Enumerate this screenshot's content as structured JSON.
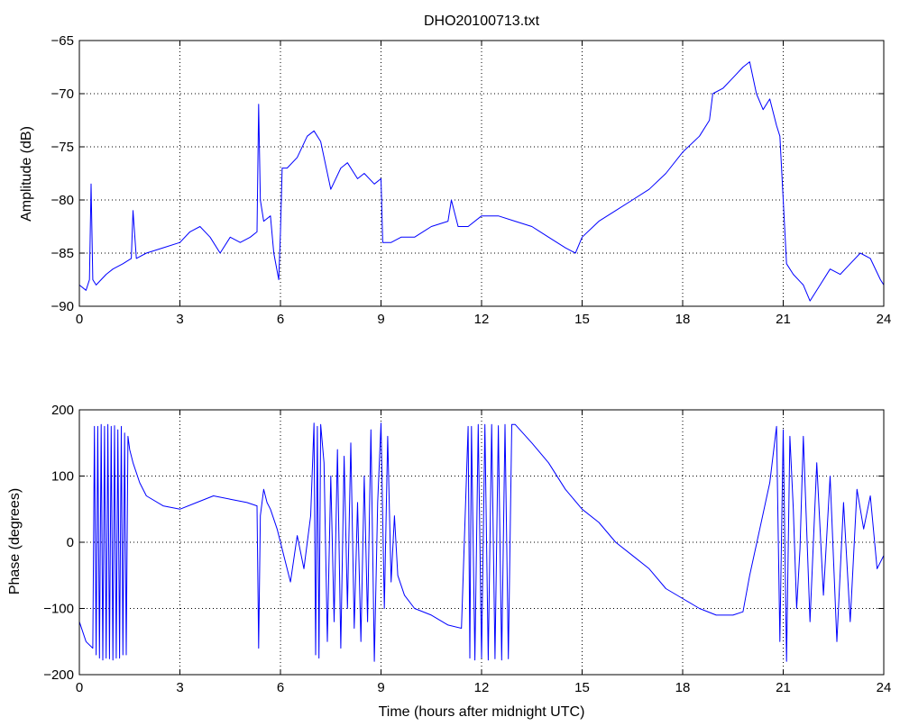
{
  "chart_data": [
    {
      "type": "line",
      "title": "DHO20100713.txt",
      "xlabel": "",
      "ylabel": "Amplitude (dB)",
      "xlim": [
        0,
        24
      ],
      "ylim": [
        -90,
        -65
      ],
      "xticks": [
        0,
        3,
        6,
        9,
        12,
        15,
        18,
        21,
        24
      ],
      "yticks": [
        -90,
        -85,
        -80,
        -75,
        -70,
        -65
      ],
      "grid": true,
      "color": "#0000ff",
      "series": [
        {
          "x": [
            0,
            0.2,
            0.3,
            0.35,
            0.4,
            0.5,
            0.8,
            1.0,
            1.3,
            1.55,
            1.6,
            1.7,
            2.0,
            2.5,
            3.0,
            3.3,
            3.6,
            3.9,
            4.2,
            4.5,
            4.8,
            5.1,
            5.3,
            5.35,
            5.4,
            5.5,
            5.7,
            5.8,
            5.95,
            6.0,
            6.05,
            6.2,
            6.5,
            6.8,
            7.0,
            7.2,
            7.5,
            7.8,
            8.0,
            8.3,
            8.5,
            8.8,
            9.0,
            9.05,
            9.3,
            9.6,
            10.0,
            10.5,
            11.0,
            11.1,
            11.3,
            11.6,
            12.0,
            12.5,
            13.0,
            13.5,
            14.0,
            14.5,
            14.8,
            15.0,
            15.5,
            16.0,
            16.5,
            17.0,
            17.5,
            18.0,
            18.5,
            18.8,
            18.9,
            19.2,
            19.5,
            19.8,
            20.0,
            20.2,
            20.4,
            20.6,
            20.8,
            20.9,
            21.0,
            21.1,
            21.3,
            21.6,
            21.8,
            22.1,
            22.4,
            22.7,
            23.0,
            23.3,
            23.6,
            23.9,
            24.0
          ],
          "y": [
            -88,
            -88.5,
            -87.5,
            -78.5,
            -87.5,
            -88,
            -87,
            -86.5,
            -86,
            -85.5,
            -81,
            -85.5,
            -85,
            -84.5,
            -84,
            -83,
            -82.5,
            -83.5,
            -85,
            -83.5,
            -84,
            -83.5,
            -83,
            -71,
            -80,
            -82,
            -81.5,
            -85,
            -87.5,
            -83,
            -77,
            -77,
            -76,
            -74,
            -73.5,
            -74.5,
            -79,
            -77,
            -76.5,
            -78,
            -77.5,
            -78.5,
            -78,
            -84,
            -84,
            -83.5,
            -83.5,
            -82.5,
            -82,
            -80,
            -82.5,
            -82.5,
            -81.5,
            -81.5,
            -82,
            -82.5,
            -83.5,
            -84.5,
            -85,
            -83.5,
            -82,
            -81,
            -80,
            -79,
            -77.5,
            -75.5,
            -74,
            -72.5,
            -70,
            -69.5,
            -68.5,
            -67.5,
            -67,
            -70,
            -71.5,
            -70.5,
            -73,
            -74,
            -80,
            -86,
            -87,
            -88,
            -89.5,
            -88,
            -86.5,
            -87,
            -86,
            -85,
            -85.5,
            -87.5,
            -88
          ]
        }
      ]
    },
    {
      "type": "line",
      "title": "",
      "xlabel": "Time (hours after midnight UTC)",
      "ylabel": "Phase (degrees)",
      "xlim": [
        0,
        24
      ],
      "ylim": [
        -200,
        200
      ],
      "xticks": [
        0,
        3,
        6,
        9,
        12,
        15,
        18,
        21,
        24
      ],
      "yticks": [
        -200,
        -100,
        0,
        100,
        200
      ],
      "grid": true,
      "color": "#0000ff",
      "series": [
        {
          "x": [
            0,
            0.2,
            0.4,
            0.45,
            0.5,
            0.55,
            0.6,
            0.65,
            0.7,
            0.75,
            0.8,
            0.85,
            0.9,
            0.95,
            1.0,
            1.05,
            1.1,
            1.15,
            1.2,
            1.25,
            1.3,
            1.35,
            1.4,
            1.45,
            1.5,
            1.6,
            1.8,
            2.0,
            2.5,
            3.0,
            3.5,
            4.0,
            4.5,
            5.0,
            5.3,
            5.35,
            5.4,
            5.5,
            5.6,
            5.7,
            5.9,
            6.1,
            6.3,
            6.5,
            6.7,
            6.9,
            7.0,
            7.05,
            7.1,
            7.15,
            7.2,
            7.3,
            7.4,
            7.5,
            7.6,
            7.7,
            7.8,
            7.9,
            8.0,
            8.1,
            8.2,
            8.3,
            8.4,
            8.5,
            8.6,
            8.7,
            8.8,
            8.9,
            9.0,
            9.1,
            9.2,
            9.3,
            9.4,
            9.5,
            9.7,
            10.0,
            10.5,
            11.0,
            11.4,
            11.6,
            11.65,
            11.7,
            11.8,
            11.9,
            12.0,
            12.1,
            12.2,
            12.3,
            12.4,
            12.5,
            12.6,
            12.7,
            12.8,
            12.9,
            13.0,
            13.5,
            14.0,
            14.5,
            15.0,
            15.5,
            16.0,
            16.5,
            17.0,
            17.5,
            18.0,
            18.5,
            19.0,
            19.5,
            19.8,
            20.0,
            20.3,
            20.6,
            20.8,
            20.9,
            21.0,
            21.1,
            21.2,
            21.3,
            21.4,
            21.5,
            21.6,
            21.8,
            22.0,
            22.2,
            22.4,
            22.6,
            22.8,
            23.0,
            23.2,
            23.4,
            23.6,
            23.8,
            24.0
          ],
          "y": [
            -120,
            -150,
            -160,
            175,
            -170,
            175,
            -175,
            178,
            -178,
            175,
            -175,
            178,
            -176,
            175,
            -178,
            176,
            -175,
            170,
            -175,
            175,
            -170,
            165,
            -170,
            160,
            140,
            120,
            90,
            70,
            55,
            50,
            60,
            70,
            65,
            60,
            55,
            -160,
            40,
            80,
            60,
            50,
            20,
            -20,
            -60,
            10,
            -40,
            40,
            180,
            -170,
            175,
            -175,
            178,
            120,
            -150,
            100,
            -120,
            140,
            -160,
            130,
            -100,
            150,
            -130,
            60,
            -150,
            100,
            -120,
            170,
            -180,
            60,
            180,
            -100,
            160,
            -60,
            40,
            -50,
            -80,
            -100,
            -110,
            -125,
            -130,
            175,
            -175,
            175,
            -178,
            178,
            -175,
            178,
            -178,
            178,
            -176,
            176,
            -178,
            178,
            -176,
            178,
            178,
            150,
            120,
            80,
            50,
            30,
            0,
            -20,
            -40,
            -70,
            -85,
            -100,
            -110,
            -110,
            -105,
            -50,
            20,
            90,
            175,
            -150,
            170,
            -180,
            160,
            50,
            -100,
            -10,
            160,
            -120,
            120,
            -80,
            100,
            -150,
            60,
            -120,
            80,
            20,
            70,
            -40,
            -20
          ]
        }
      ]
    }
  ]
}
